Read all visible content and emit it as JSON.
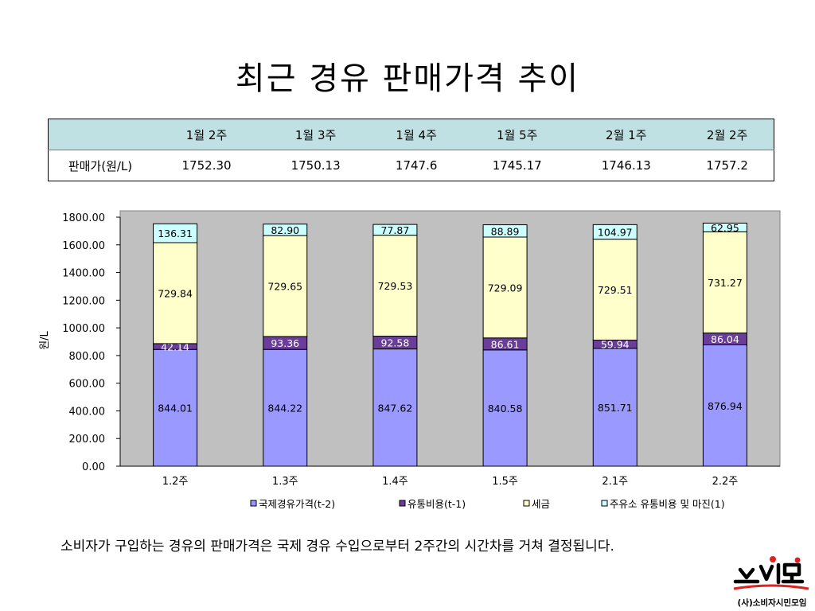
{
  "title": "최근 경유 판매가격 추이",
  "table": {
    "header": [
      "",
      "1월 2주",
      "1월 3주",
      "1월 4주",
      "1월 5주",
      "2월 1주",
      "2월 2주"
    ],
    "row_label": "판매가(원/L)",
    "values": [
      "1752.30",
      "1750.13",
      "1747.6",
      "1745.17",
      "1746.13",
      "1757.2"
    ]
  },
  "chart_data": {
    "type": "bar",
    "stacked": true,
    "categories": [
      "1.2주",
      "1.3주",
      "1.4주",
      "1.5주",
      "2.1주",
      "2.2주"
    ],
    "ylabel": "원/L",
    "ylim": [
      0,
      1800
    ],
    "yticks": [
      "0.00",
      "200.00",
      "400.00",
      "600.00",
      "800.00",
      "1000.00",
      "1200.00",
      "1400.00",
      "1600.00",
      "1800.00"
    ],
    "grid": false,
    "legend_position": "bottom",
    "series": [
      {
        "name": "국제경유가격(t-2)",
        "color": "#9999ff",
        "values": [
          844.01,
          844.22,
          847.62,
          840.58,
          851.71,
          876.94
        ],
        "labels": [
          "844.01",
          "844.22",
          "847.62",
          "840.58",
          "851.71",
          "876.94"
        ]
      },
      {
        "name": "유통비용(t-1)",
        "color": "#6a3d9a",
        "values": [
          42.14,
          93.36,
          92.58,
          86.61,
          59.94,
          86.04
        ],
        "labels": [
          "42.14",
          "93.36",
          "92.58",
          "86.61",
          "59.94",
          "86.04"
        ]
      },
      {
        "name": "세금",
        "color": "#ffffcc",
        "values": [
          729.84,
          729.65,
          729.53,
          729.09,
          729.51,
          731.27
        ],
        "labels": [
          "729.84",
          "729.65",
          "729.53",
          "729.09",
          "729.51",
          "731.27"
        ]
      },
      {
        "name": "주유소 유통비용 및 마진(1)",
        "color": "#ccffff",
        "values": [
          136.31,
          82.9,
          77.87,
          88.89,
          104.97,
          62.95
        ],
        "labels": [
          "136.31",
          "82.90",
          "77.87",
          "88.89",
          "104.97",
          "62.95"
        ]
      }
    ]
  },
  "footnote": "소비자가 구입하는 경유의 판매가격은 국제 경유 수입으로부터 2주간의 시간차를 거쳐 결정됩니다.",
  "logo": {
    "mark": "소시모",
    "caption": "(사)소비자시민모임"
  }
}
